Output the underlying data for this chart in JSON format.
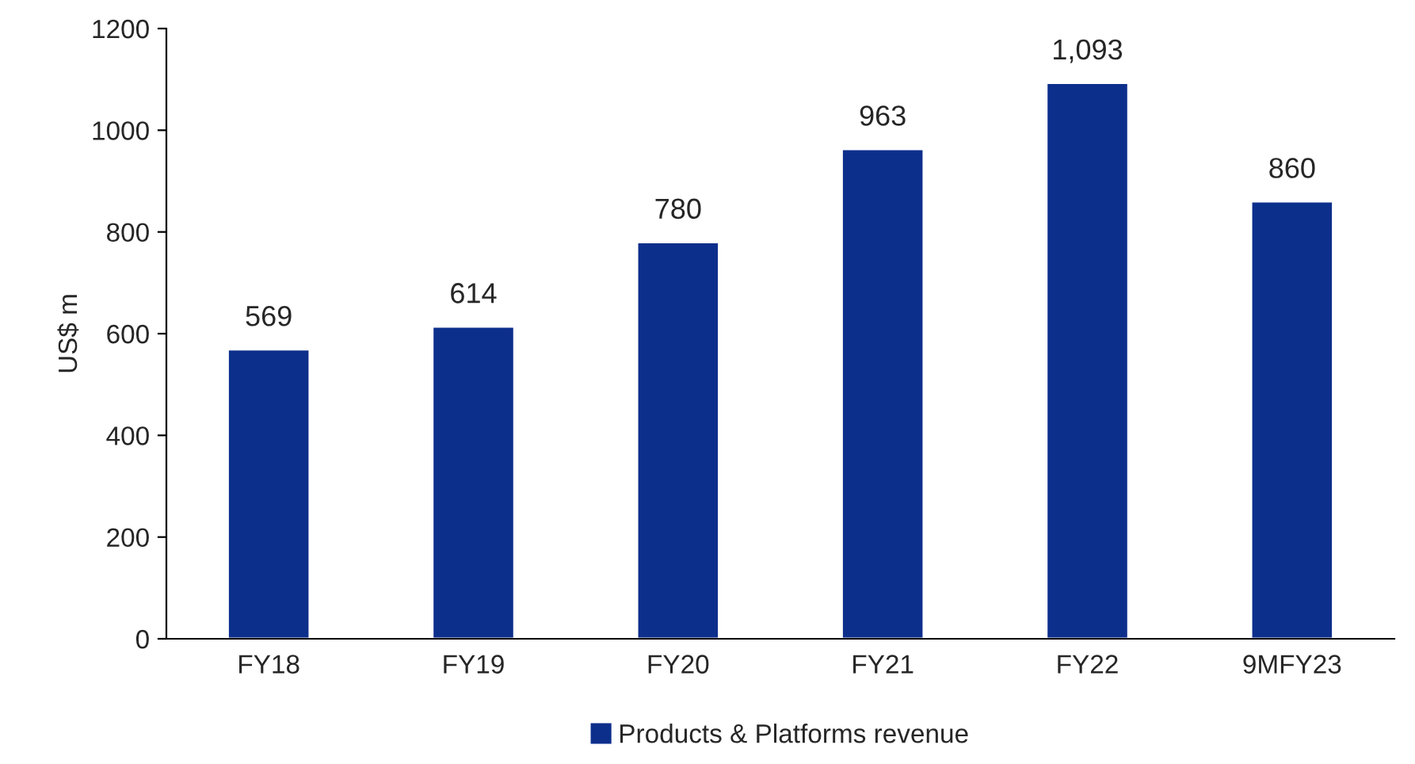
{
  "chart_data": {
    "type": "bar",
    "ylabel": "US$ m",
    "categories": [
      "FY18",
      "FY19",
      "FY20",
      "FY21",
      "FY22",
      "9MFY23"
    ],
    "series": [
      {
        "name": "Products & Platforms revenue",
        "color": "#0d2f8c",
        "values": [
          569,
          614,
          780,
          963,
          1093,
          860
        ],
        "value_labels": [
          "569",
          "614",
          "780",
          "963",
          "1,093",
          "860"
        ]
      }
    ],
    "ylim": [
      0,
      1200
    ],
    "yticks": [
      0,
      200,
      400,
      600,
      800,
      1000,
      1200
    ],
    "grid": false,
    "legend": "bottom"
  }
}
